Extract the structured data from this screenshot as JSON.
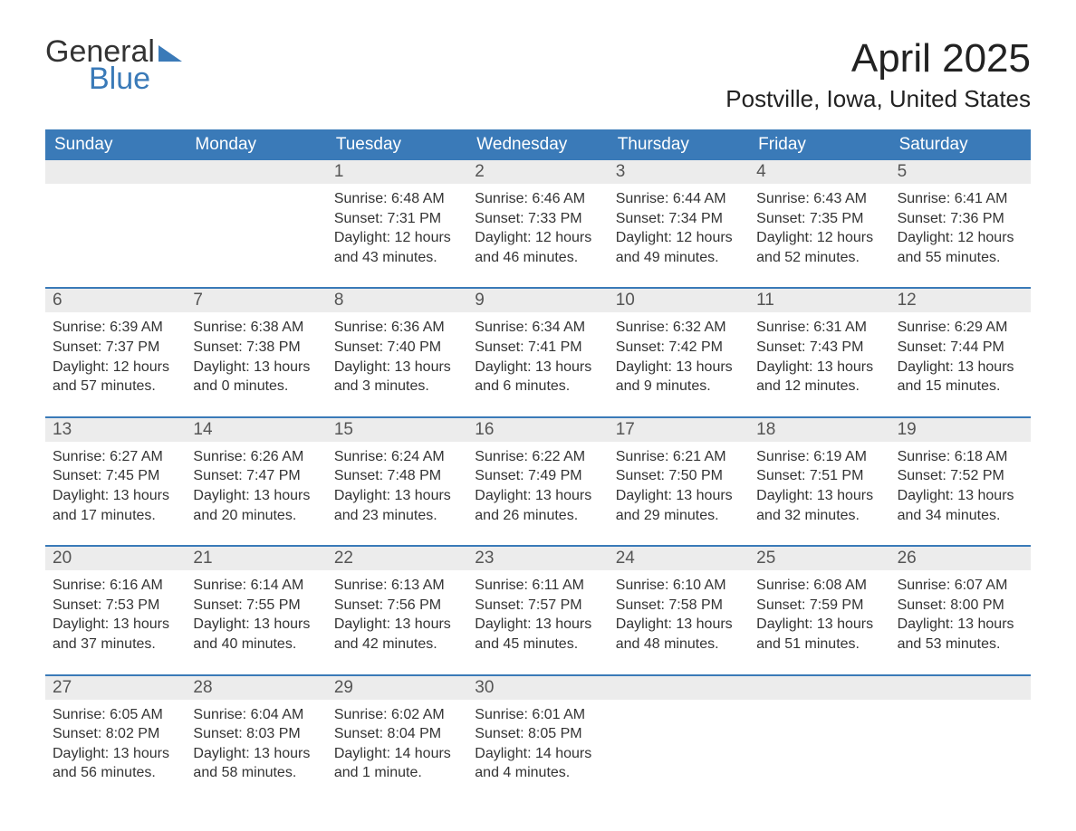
{
  "logo": {
    "general": "General",
    "blue": "Blue"
  },
  "title": "April 2025",
  "location": "Postville, Iowa, United States",
  "colors": {
    "header_bg": "#3a7ab8",
    "daynum_bg": "#ececec",
    "border": "#3a7ab8",
    "text": "#333333",
    "bg": "#ffffff"
  },
  "typography": {
    "title_fontsize": 44,
    "location_fontsize": 26,
    "header_fontsize": 19,
    "body_fontsize": 16
  },
  "weekdays": [
    "Sunday",
    "Monday",
    "Tuesday",
    "Wednesday",
    "Thursday",
    "Friday",
    "Saturday"
  ],
  "labels": {
    "sunrise": "Sunrise:",
    "sunset": "Sunset:",
    "daylight_prefix": "Daylight:"
  },
  "weeks": [
    [
      {
        "blank": true
      },
      {
        "blank": true
      },
      {
        "day": "1",
        "sunrise": "Sunrise: 6:48 AM",
        "sunset": "Sunset: 7:31 PM",
        "daylight": "Daylight: 12 hours and 43 minutes."
      },
      {
        "day": "2",
        "sunrise": "Sunrise: 6:46 AM",
        "sunset": "Sunset: 7:33 PM",
        "daylight": "Daylight: 12 hours and 46 minutes."
      },
      {
        "day": "3",
        "sunrise": "Sunrise: 6:44 AM",
        "sunset": "Sunset: 7:34 PM",
        "daylight": "Daylight: 12 hours and 49 minutes."
      },
      {
        "day": "4",
        "sunrise": "Sunrise: 6:43 AM",
        "sunset": "Sunset: 7:35 PM",
        "daylight": "Daylight: 12 hours and 52 minutes."
      },
      {
        "day": "5",
        "sunrise": "Sunrise: 6:41 AM",
        "sunset": "Sunset: 7:36 PM",
        "daylight": "Daylight: 12 hours and 55 minutes."
      }
    ],
    [
      {
        "day": "6",
        "sunrise": "Sunrise: 6:39 AM",
        "sunset": "Sunset: 7:37 PM",
        "daylight": "Daylight: 12 hours and 57 minutes."
      },
      {
        "day": "7",
        "sunrise": "Sunrise: 6:38 AM",
        "sunset": "Sunset: 7:38 PM",
        "daylight": "Daylight: 13 hours and 0 minutes."
      },
      {
        "day": "8",
        "sunrise": "Sunrise: 6:36 AM",
        "sunset": "Sunset: 7:40 PM",
        "daylight": "Daylight: 13 hours and 3 minutes."
      },
      {
        "day": "9",
        "sunrise": "Sunrise: 6:34 AM",
        "sunset": "Sunset: 7:41 PM",
        "daylight": "Daylight: 13 hours and 6 minutes."
      },
      {
        "day": "10",
        "sunrise": "Sunrise: 6:32 AM",
        "sunset": "Sunset: 7:42 PM",
        "daylight": "Daylight: 13 hours and 9 minutes."
      },
      {
        "day": "11",
        "sunrise": "Sunrise: 6:31 AM",
        "sunset": "Sunset: 7:43 PM",
        "daylight": "Daylight: 13 hours and 12 minutes."
      },
      {
        "day": "12",
        "sunrise": "Sunrise: 6:29 AM",
        "sunset": "Sunset: 7:44 PM",
        "daylight": "Daylight: 13 hours and 15 minutes."
      }
    ],
    [
      {
        "day": "13",
        "sunrise": "Sunrise: 6:27 AM",
        "sunset": "Sunset: 7:45 PM",
        "daylight": "Daylight: 13 hours and 17 minutes."
      },
      {
        "day": "14",
        "sunrise": "Sunrise: 6:26 AM",
        "sunset": "Sunset: 7:47 PM",
        "daylight": "Daylight: 13 hours and 20 minutes."
      },
      {
        "day": "15",
        "sunrise": "Sunrise: 6:24 AM",
        "sunset": "Sunset: 7:48 PM",
        "daylight": "Daylight: 13 hours and 23 minutes."
      },
      {
        "day": "16",
        "sunrise": "Sunrise: 6:22 AM",
        "sunset": "Sunset: 7:49 PM",
        "daylight": "Daylight: 13 hours and 26 minutes."
      },
      {
        "day": "17",
        "sunrise": "Sunrise: 6:21 AM",
        "sunset": "Sunset: 7:50 PM",
        "daylight": "Daylight: 13 hours and 29 minutes."
      },
      {
        "day": "18",
        "sunrise": "Sunrise: 6:19 AM",
        "sunset": "Sunset: 7:51 PM",
        "daylight": "Daylight: 13 hours and 32 minutes."
      },
      {
        "day": "19",
        "sunrise": "Sunrise: 6:18 AM",
        "sunset": "Sunset: 7:52 PM",
        "daylight": "Daylight: 13 hours and 34 minutes."
      }
    ],
    [
      {
        "day": "20",
        "sunrise": "Sunrise: 6:16 AM",
        "sunset": "Sunset: 7:53 PM",
        "daylight": "Daylight: 13 hours and 37 minutes."
      },
      {
        "day": "21",
        "sunrise": "Sunrise: 6:14 AM",
        "sunset": "Sunset: 7:55 PM",
        "daylight": "Daylight: 13 hours and 40 minutes."
      },
      {
        "day": "22",
        "sunrise": "Sunrise: 6:13 AM",
        "sunset": "Sunset: 7:56 PM",
        "daylight": "Daylight: 13 hours and 42 minutes."
      },
      {
        "day": "23",
        "sunrise": "Sunrise: 6:11 AM",
        "sunset": "Sunset: 7:57 PM",
        "daylight": "Daylight: 13 hours and 45 minutes."
      },
      {
        "day": "24",
        "sunrise": "Sunrise: 6:10 AM",
        "sunset": "Sunset: 7:58 PM",
        "daylight": "Daylight: 13 hours and 48 minutes."
      },
      {
        "day": "25",
        "sunrise": "Sunrise: 6:08 AM",
        "sunset": "Sunset: 7:59 PM",
        "daylight": "Daylight: 13 hours and 51 minutes."
      },
      {
        "day": "26",
        "sunrise": "Sunrise: 6:07 AM",
        "sunset": "Sunset: 8:00 PM",
        "daylight": "Daylight: 13 hours and 53 minutes."
      }
    ],
    [
      {
        "day": "27",
        "sunrise": "Sunrise: 6:05 AM",
        "sunset": "Sunset: 8:02 PM",
        "daylight": "Daylight: 13 hours and 56 minutes."
      },
      {
        "day": "28",
        "sunrise": "Sunrise: 6:04 AM",
        "sunset": "Sunset: 8:03 PM",
        "daylight": "Daylight: 13 hours and 58 minutes."
      },
      {
        "day": "29",
        "sunrise": "Sunrise: 6:02 AM",
        "sunset": "Sunset: 8:04 PM",
        "daylight": "Daylight: 14 hours and 1 minute."
      },
      {
        "day": "30",
        "sunrise": "Sunrise: 6:01 AM",
        "sunset": "Sunset: 8:05 PM",
        "daylight": "Daylight: 14 hours and 4 minutes."
      },
      {
        "blank": true
      },
      {
        "blank": true
      },
      {
        "blank": true
      }
    ]
  ]
}
